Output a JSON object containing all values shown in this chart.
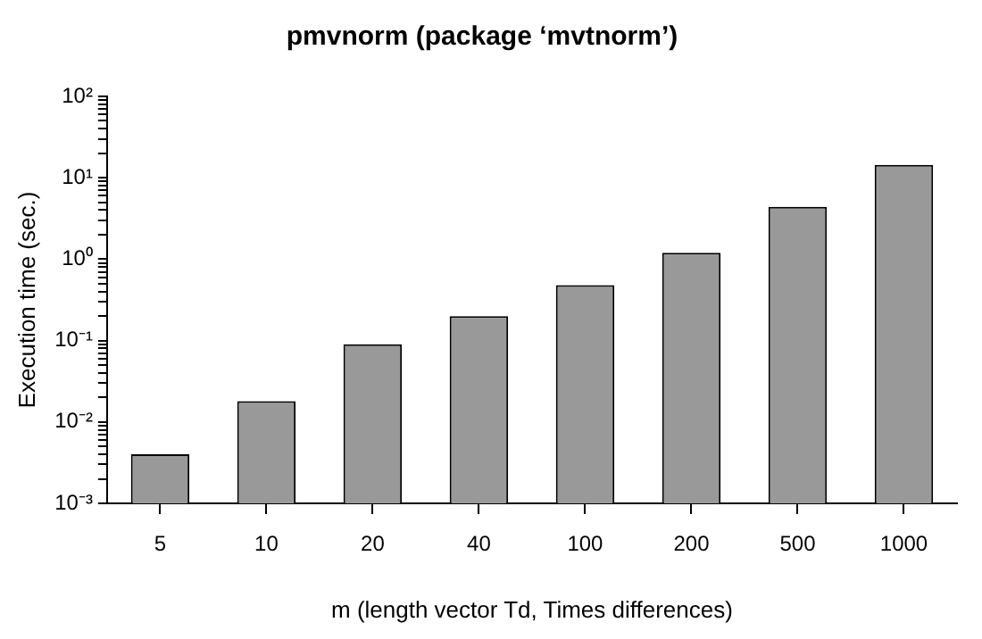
{
  "chart_data": {
    "type": "bar",
    "title": "pmvnorm (package ‘mvtnorm’)",
    "xlabel": "m (length vector Td, Times differences)",
    "ylabel": "Execution time (sec.)",
    "categories": [
      "5",
      "10",
      "20",
      "40",
      "100",
      "200",
      "500",
      "1000"
    ],
    "series": [
      {
        "color": "#999999",
        "values": [
          0.004,
          0.018,
          0.09,
          0.2,
          0.48,
          1.2,
          4.4,
          14.4
        ]
      }
    ],
    "log": "y",
    "grid": false,
    "legend": false,
    "ylim": [
      0.001,
      100
    ],
    "yticks": [
      {
        "value": 0.001,
        "label": "10⁻³"
      },
      {
        "value": 0.002,
        "label": null
      },
      {
        "value": 0.003,
        "label": null
      },
      {
        "value": 0.004,
        "label": null
      },
      {
        "value": 0.005,
        "label": null
      },
      {
        "value": 0.006,
        "label": null
      },
      {
        "value": 0.007,
        "label": null
      },
      {
        "value": 0.008,
        "label": null
      },
      {
        "value": 0.009,
        "label": null
      },
      {
        "value": 0.01,
        "label": "10⁻²"
      },
      {
        "value": 0.02,
        "label": null
      },
      {
        "value": 0.03,
        "label": null
      },
      {
        "value": 0.04,
        "label": null
      },
      {
        "value": 0.05,
        "label": null
      },
      {
        "value": 0.06,
        "label": null
      },
      {
        "value": 0.07,
        "label": null
      },
      {
        "value": 0.08,
        "label": null
      },
      {
        "value": 0.09,
        "label": null
      },
      {
        "value": 0.1,
        "label": "10⁻¹"
      },
      {
        "value": 0.2,
        "label": null
      },
      {
        "value": 0.3,
        "label": null
      },
      {
        "value": 0.4,
        "label": null
      },
      {
        "value": 0.5,
        "label": null
      },
      {
        "value": 0.6,
        "label": null
      },
      {
        "value": 0.7,
        "label": null
      },
      {
        "value": 0.8,
        "label": null
      },
      {
        "value": 0.9,
        "label": null
      },
      {
        "value": 1,
        "label": "10⁰"
      },
      {
        "value": 2,
        "label": null
      },
      {
        "value": 3,
        "label": null
      },
      {
        "value": 4,
        "label": null
      },
      {
        "value": 5,
        "label": null
      },
      {
        "value": 6,
        "label": null
      },
      {
        "value": 7,
        "label": null
      },
      {
        "value": 8,
        "label": null
      },
      {
        "value": 9,
        "label": null
      },
      {
        "value": 10,
        "label": "10¹"
      },
      {
        "value": 20,
        "label": null
      },
      {
        "value": 30,
        "label": null
      },
      {
        "value": 40,
        "label": null
      },
      {
        "value": 50,
        "label": null
      },
      {
        "value": 60,
        "label": null
      },
      {
        "value": 70,
        "label": null
      },
      {
        "value": 80,
        "label": null
      },
      {
        "value": 90,
        "label": null
      },
      {
        "value": 100,
        "label": "10²"
      }
    ]
  }
}
